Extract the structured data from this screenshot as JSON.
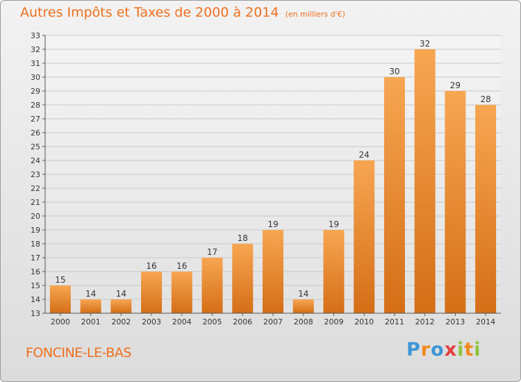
{
  "title": "Autres Impôts et Taxes de 2000 à 2014",
  "subtitle": "(en milliers d'€)",
  "commune": "FONCINE-LE-BAS",
  "logo": {
    "text": "Proxiti"
  },
  "colors": {
    "accent": "#ef6f1c",
    "bar_light": "#f7a652",
    "bar_dark": "#d46e17",
    "grid": "#c8c8c8",
    "axis_text": "#333333"
  },
  "chart_data": {
    "type": "bar",
    "categories": [
      "2000",
      "2001",
      "2002",
      "2003",
      "2004",
      "2005",
      "2006",
      "2007",
      "2008",
      "2009",
      "2010",
      "2011",
      "2012",
      "2013",
      "2014"
    ],
    "values": [
      15,
      14,
      14,
      16,
      16,
      17,
      18,
      19,
      14,
      19,
      24,
      30,
      32,
      29,
      28
    ],
    "data_labels": [
      "15",
      "14",
      "14",
      "16",
      "16",
      "17",
      "18",
      "19",
      "14",
      "19",
      "24",
      "30",
      "32",
      "29",
      "28"
    ],
    "title": "Autres Impôts et Taxes de 2000 à 2014",
    "subtitle": "(en milliers d'€)",
    "xlabel": "",
    "ylabel": "",
    "ylim": [
      13,
      33
    ],
    "yticks": [
      13,
      14,
      15,
      16,
      17,
      18,
      19,
      20,
      21,
      22,
      23,
      24,
      25,
      26,
      27,
      28,
      29,
      30,
      31,
      32,
      33
    ],
    "grid": true,
    "legend": "none"
  }
}
